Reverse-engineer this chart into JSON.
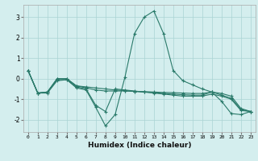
{
  "xlabel": "Humidex (Indice chaleur)",
  "x": [
    0,
    1,
    2,
    3,
    4,
    5,
    6,
    7,
    8,
    9,
    10,
    11,
    12,
    13,
    14,
    15,
    16,
    17,
    18,
    19,
    20,
    21,
    22,
    23
  ],
  "line1": [
    0.4,
    -0.7,
    -0.7,
    -0.1,
    -0.05,
    -0.45,
    -0.55,
    -1.4,
    -2.3,
    -1.75,
    0.05,
    2.2,
    3.0,
    3.3,
    2.2,
    0.4,
    -0.1,
    -0.3,
    -0.5,
    -0.65,
    -1.1,
    -1.7,
    -1.75,
    -1.6
  ],
  "line2": [
    0.4,
    -0.7,
    -0.65,
    -0.05,
    -0.05,
    -0.4,
    -0.5,
    -1.3,
    -1.6,
    -0.5,
    -0.55,
    -0.6,
    -0.65,
    -0.7,
    -0.75,
    -0.8,
    -0.85,
    -0.85,
    -0.85,
    -0.75,
    -0.85,
    -1.0,
    -1.55,
    -1.6
  ],
  "line3": [
    0.4,
    -0.7,
    -0.65,
    0.0,
    0.0,
    -0.35,
    -0.45,
    -0.55,
    -0.6,
    -0.6,
    -0.6,
    -0.62,
    -0.63,
    -0.65,
    -0.67,
    -0.68,
    -0.7,
    -0.72,
    -0.72,
    -0.65,
    -0.72,
    -0.85,
    -1.45,
    -1.6
  ],
  "line4": [
    0.4,
    -0.7,
    -0.65,
    0.0,
    0.0,
    -0.35,
    -0.4,
    -0.45,
    -0.5,
    -0.55,
    -0.58,
    -0.62,
    -0.65,
    -0.68,
    -0.72,
    -0.75,
    -0.78,
    -0.8,
    -0.8,
    -0.65,
    -0.8,
    -0.95,
    -1.5,
    -1.6
  ],
  "line_color": "#2a7a6a",
  "bg_color": "#d4eeee",
  "grid_color": "#aad4d4",
  "ylim": [
    -2.6,
    3.6
  ],
  "yticks": [
    -2,
    -1,
    0,
    1,
    2,
    3
  ],
  "xticks": [
    0,
    1,
    2,
    3,
    4,
    5,
    6,
    7,
    8,
    9,
    10,
    11,
    12,
    13,
    14,
    15,
    16,
    17,
    18,
    19,
    20,
    21,
    22,
    23
  ]
}
